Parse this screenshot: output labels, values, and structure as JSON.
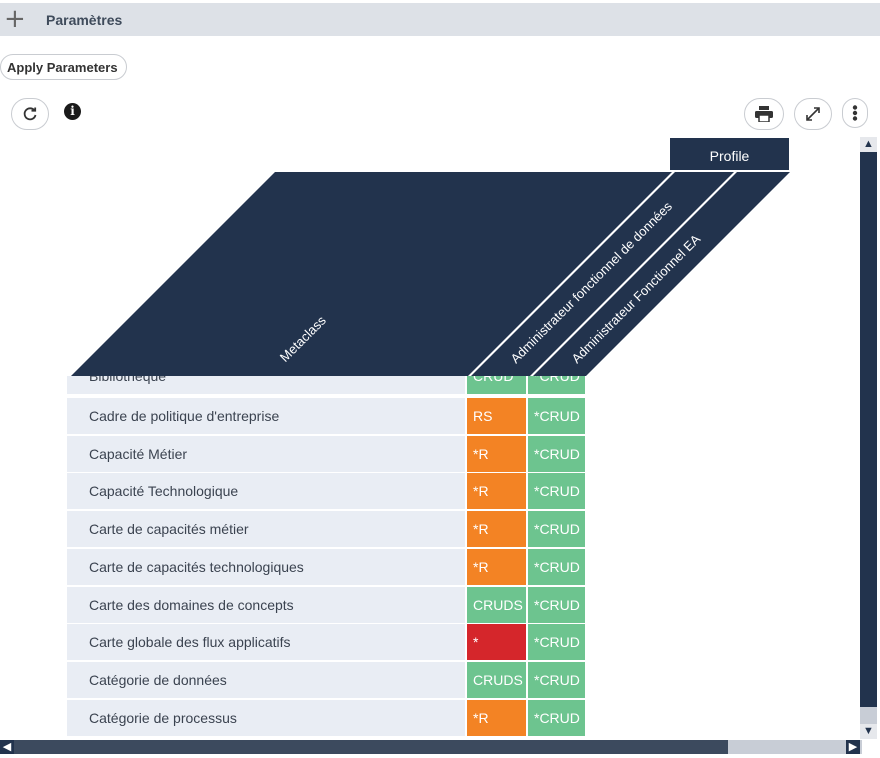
{
  "panel": {
    "title": "Paramètres",
    "expand_icon": "plus-icon"
  },
  "toolbar": {
    "apply_label": "Apply Parameters",
    "refresh_icon": "refresh-icon",
    "info_icon": "info-icon",
    "print_icon": "print-icon",
    "expand_icon": "expand-icon",
    "more_icon": "more-vertical-icon"
  },
  "matrix": {
    "profile_header": "Profile",
    "metaclass_header": "Metaclass",
    "columns": [
      "Administrateur fonctionnel de données",
      "Administrateur Fonctionnel EA"
    ],
    "rows": [
      {
        "name": "Bibliothèque",
        "c1": "CRUD",
        "c2": "*CRUD"
      },
      {
        "name": "Cadre de politique d'entreprise",
        "c1": "RS",
        "c2": "*CRUD"
      },
      {
        "name": "Capacité Métier",
        "c1": "*R",
        "c2": "*CRUD"
      },
      {
        "name": "Capacité Technologique",
        "c1": "*R",
        "c2": "*CRUD"
      },
      {
        "name": "Carte de capacités métier",
        "c1": "*R",
        "c2": "*CRUD"
      },
      {
        "name": "Carte de capacités technologiques",
        "c1": "*R",
        "c2": "*CRUD"
      },
      {
        "name": "Carte des domaines de concepts",
        "c1": "CRUDS",
        "c2": "*CRUD"
      },
      {
        "name": "Carte globale des flux applicatifs",
        "c1": "*",
        "c2": "*CRUD"
      },
      {
        "name": "Catégorie de données",
        "c1": "CRUDS",
        "c2": "*CRUD"
      },
      {
        "name": "Catégorie de processus",
        "c1": "*R",
        "c2": "*CRUD"
      }
    ]
  },
  "colors": {
    "header": "#22334d",
    "crud_full": "#6dc48f",
    "partial": "#f38324",
    "none": "#d5262b",
    "row_bg": "#e9edf4"
  }
}
